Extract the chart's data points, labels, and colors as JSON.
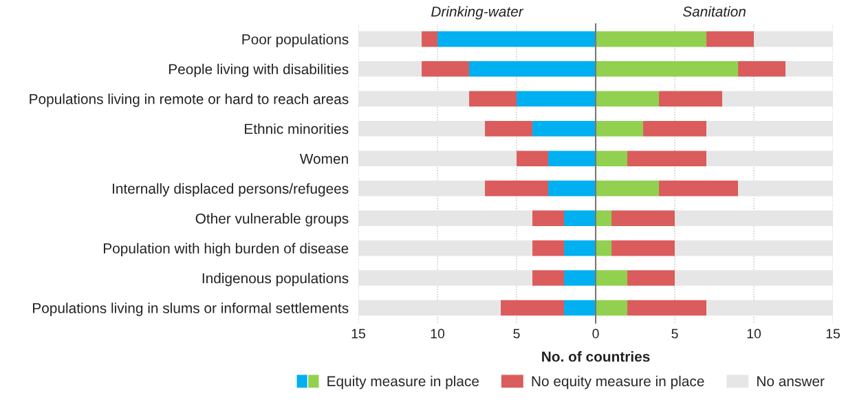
{
  "chart_data": [
    {
      "type": "bar",
      "orientation": "horizontal",
      "stacked": true,
      "title": "Drinking-water",
      "xlabel": "No. of countries",
      "categories": [
        "Poor populations",
        "People living with disabilities",
        "Populations living in remote or hard to reach areas",
        "Ethnic minorities",
        "Women",
        "Internally displaced persons/refugees",
        "Other vulnerable groups",
        "Population with high burden of disease",
        "Indigenous populations",
        "Populations living in slums or informal settlements"
      ],
      "series": [
        {
          "name": "Equity measure in place",
          "color": "#00b0f0",
          "values": [
            10,
            8,
            5,
            4,
            3,
            3,
            2,
            2,
            2,
            2
          ]
        },
        {
          "name": "No equity measure in place",
          "color": "#da5c5c",
          "values": [
            1,
            3,
            3,
            3,
            2,
            4,
            2,
            2,
            2,
            4
          ]
        },
        {
          "name": "No answer",
          "color": "#e6e6e6",
          "values": [
            4,
            4,
            7,
            8,
            10,
            8,
            11,
            11,
            11,
            9
          ]
        }
      ],
      "xlim": [
        15,
        0
      ],
      "xticks": [
        15,
        10,
        5,
        {
          "value": 0,
          "label": null
        }
      ],
      "grid": "x",
      "legend": "bottom",
      "tick_labels": true
    },
    {
      "type": "bar",
      "orientation": "horizontal",
      "stacked": true,
      "title": "Sanitation",
      "categories": [
        null,
        null,
        null,
        null,
        null,
        null,
        null,
        null,
        null,
        null
      ],
      "series": [
        {
          "color": "#92d050",
          "values": [
            7,
            9,
            4,
            3,
            2,
            4,
            1,
            1,
            2,
            2
          ]
        },
        {
          "color": "#da5c5c",
          "values": [
            3,
            3,
            4,
            4,
            5,
            5,
            4,
            4,
            3,
            5
          ]
        },
        {
          "color": "#e6e6e6",
          "values": [
            5,
            3,
            7,
            8,
            8,
            6,
            10,
            10,
            10,
            8
          ]
        }
      ],
      "xlim": [
        0,
        15
      ],
      "xticks": [
        0,
        5,
        10,
        15
      ],
      "grid": "x",
      "tick_labels": "x"
    }
  ]
}
